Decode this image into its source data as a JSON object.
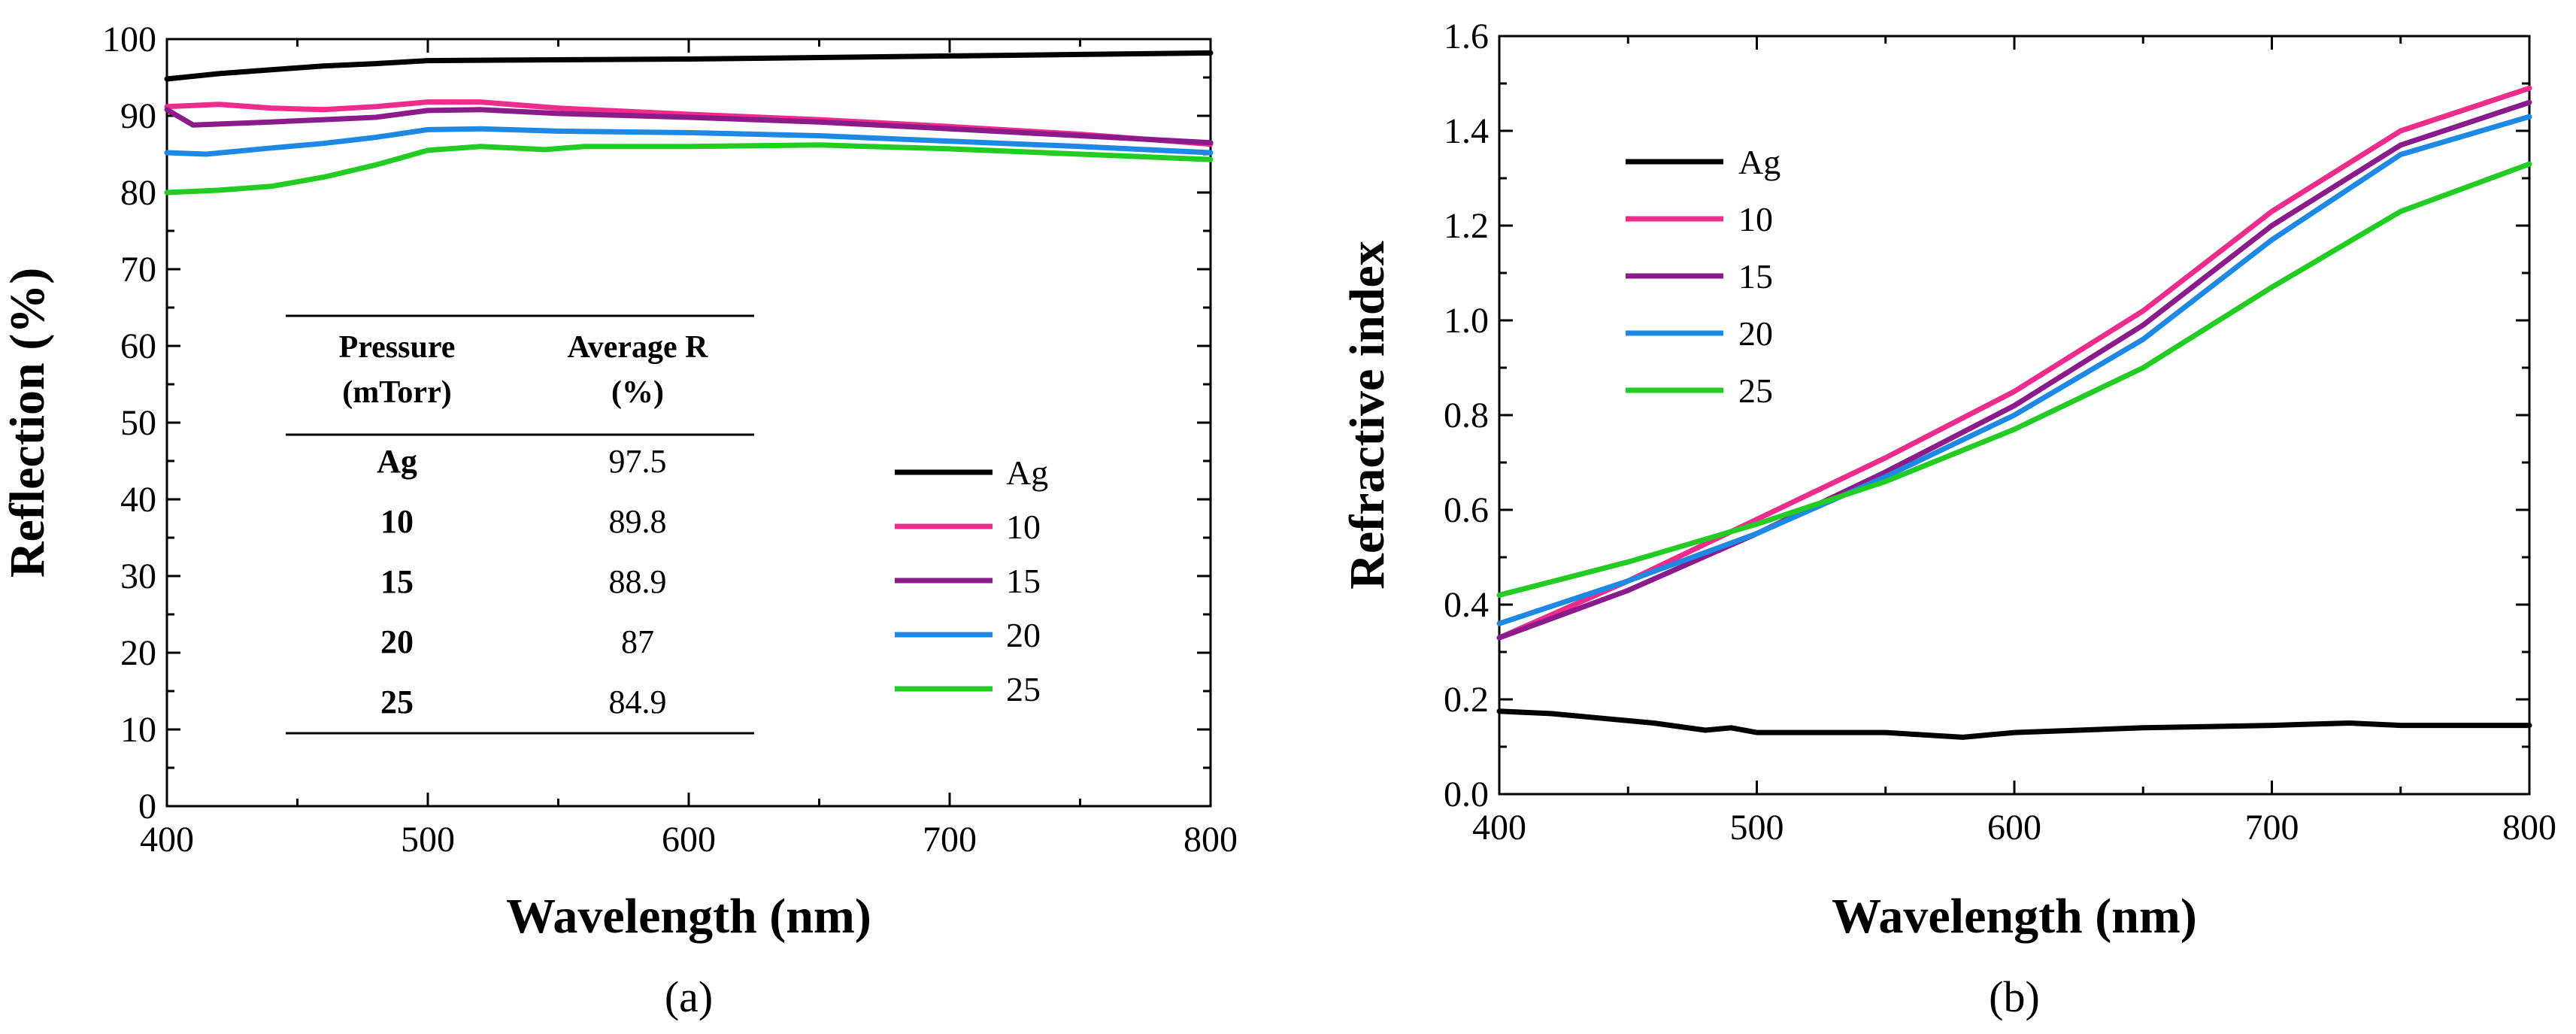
{
  "chart_data": [
    {
      "type": "line",
      "panel_label": "(a)",
      "xlabel": "Wavelength (nm)",
      "ylabel": "Reflection (%)",
      "xlim": [
        400,
        800
      ],
      "ylim": [
        0,
        100
      ],
      "xticks": [
        400,
        500,
        600,
        700,
        800
      ],
      "yticks": [
        0,
        10,
        20,
        30,
        40,
        50,
        60,
        70,
        80,
        90,
        100
      ],
      "legend": {
        "placement": "right-middle",
        "entries": [
          "Ag",
          "10",
          "15",
          "20",
          "25"
        ]
      },
      "series": [
        {
          "name": "Ag",
          "color": "#000000",
          "x": [
            400,
            420,
            440,
            460,
            480,
            500,
            550,
            600,
            650,
            700,
            750,
            800
          ],
          "y": [
            94.8,
            95.5,
            96.0,
            96.5,
            96.8,
            97.2,
            97.3,
            97.4,
            97.6,
            97.8,
            98.0,
            98.2
          ]
        },
        {
          "name": "10",
          "color": "#ee2c8c",
          "x": [
            400,
            420,
            440,
            460,
            480,
            500,
            520,
            550,
            600,
            650,
            700,
            750,
            800
          ],
          "y": [
            91.2,
            91.5,
            91.0,
            90.8,
            91.2,
            91.8,
            91.8,
            91.0,
            90.2,
            89.5,
            88.6,
            87.6,
            86.3
          ]
        },
        {
          "name": "15",
          "color": "#8b1a8b",
          "x": [
            400,
            410,
            440,
            460,
            480,
            500,
            520,
            550,
            600,
            650,
            700,
            750,
            800
          ],
          "y": [
            90.8,
            88.8,
            89.2,
            89.5,
            89.8,
            90.7,
            90.8,
            90.3,
            89.8,
            89.2,
            88.3,
            87.4,
            86.5
          ]
        },
        {
          "name": "20",
          "color": "#1e88e5",
          "x": [
            400,
            415,
            440,
            460,
            480,
            500,
            520,
            550,
            600,
            650,
            700,
            750,
            800
          ],
          "y": [
            85.2,
            85.0,
            85.8,
            86.4,
            87.2,
            88.2,
            88.3,
            88.0,
            87.8,
            87.4,
            86.7,
            86.0,
            85.2
          ]
        },
        {
          "name": "25",
          "color": "#22cc22",
          "x": [
            400,
            420,
            440,
            460,
            480,
            500,
            520,
            545,
            560,
            600,
            650,
            700,
            750,
            800
          ],
          "y": [
            80.0,
            80.3,
            80.8,
            82.0,
            83.6,
            85.5,
            86.0,
            85.6,
            86.0,
            86.0,
            86.2,
            85.7,
            85.0,
            84.3
          ]
        }
      ],
      "table": {
        "headers": [
          [
            "Pressure",
            "(mTorr)"
          ],
          [
            "Average R",
            "(%)"
          ]
        ],
        "rows": [
          {
            "pressure": "Ag",
            "average": "97.5"
          },
          {
            "pressure": "10",
            "average": "89.8"
          },
          {
            "pressure": "15",
            "average": "88.9"
          },
          {
            "pressure": "20",
            "average": "87"
          },
          {
            "pressure": "25",
            "average": "84.9"
          }
        ]
      }
    },
    {
      "type": "line",
      "panel_label": "(b)",
      "xlabel": "Wavelength (nm)",
      "ylabel": "Refractive index",
      "xlim": [
        400,
        800
      ],
      "ylim": [
        0.0,
        1.6
      ],
      "xticks": [
        400,
        500,
        600,
        700,
        800
      ],
      "yticks": [
        "0.0",
        "0.2",
        "0.4",
        "0.6",
        "0.8",
        "1.0",
        "1.2",
        "1.4",
        "1.6"
      ],
      "legend": {
        "placement": "top-left",
        "entries": [
          "Ag",
          "10",
          "15",
          "20",
          "25"
        ]
      },
      "series": [
        {
          "name": "Ag",
          "color": "#000000",
          "x": [
            400,
            420,
            440,
            460,
            480,
            490,
            500,
            550,
            580,
            600,
            650,
            700,
            730,
            750,
            800
          ],
          "y": [
            0.175,
            0.17,
            0.16,
            0.15,
            0.135,
            0.14,
            0.13,
            0.13,
            0.12,
            0.13,
            0.14,
            0.145,
            0.15,
            0.145,
            0.145
          ]
        },
        {
          "name": "10",
          "color": "#ee2c8c",
          "x": [
            400,
            450,
            500,
            550,
            600,
            650,
            700,
            750,
            800
          ],
          "y": [
            0.33,
            0.45,
            0.58,
            0.71,
            0.85,
            1.02,
            1.23,
            1.4,
            1.49
          ]
        },
        {
          "name": "15",
          "color": "#8b1a8b",
          "x": [
            400,
            450,
            500,
            550,
            600,
            650,
            700,
            750,
            800
          ],
          "y": [
            0.33,
            0.43,
            0.55,
            0.68,
            0.82,
            0.99,
            1.2,
            1.37,
            1.46
          ]
        },
        {
          "name": "20",
          "color": "#1e88e5",
          "x": [
            400,
            450,
            500,
            550,
            600,
            650,
            700,
            750,
            800
          ],
          "y": [
            0.36,
            0.45,
            0.55,
            0.67,
            0.8,
            0.96,
            1.17,
            1.35,
            1.43
          ]
        },
        {
          "name": "25",
          "color": "#22cc22",
          "x": [
            400,
            450,
            500,
            550,
            600,
            650,
            700,
            750,
            800
          ],
          "y": [
            0.42,
            0.49,
            0.57,
            0.66,
            0.77,
            0.9,
            1.07,
            1.23,
            1.33
          ]
        }
      ]
    }
  ]
}
